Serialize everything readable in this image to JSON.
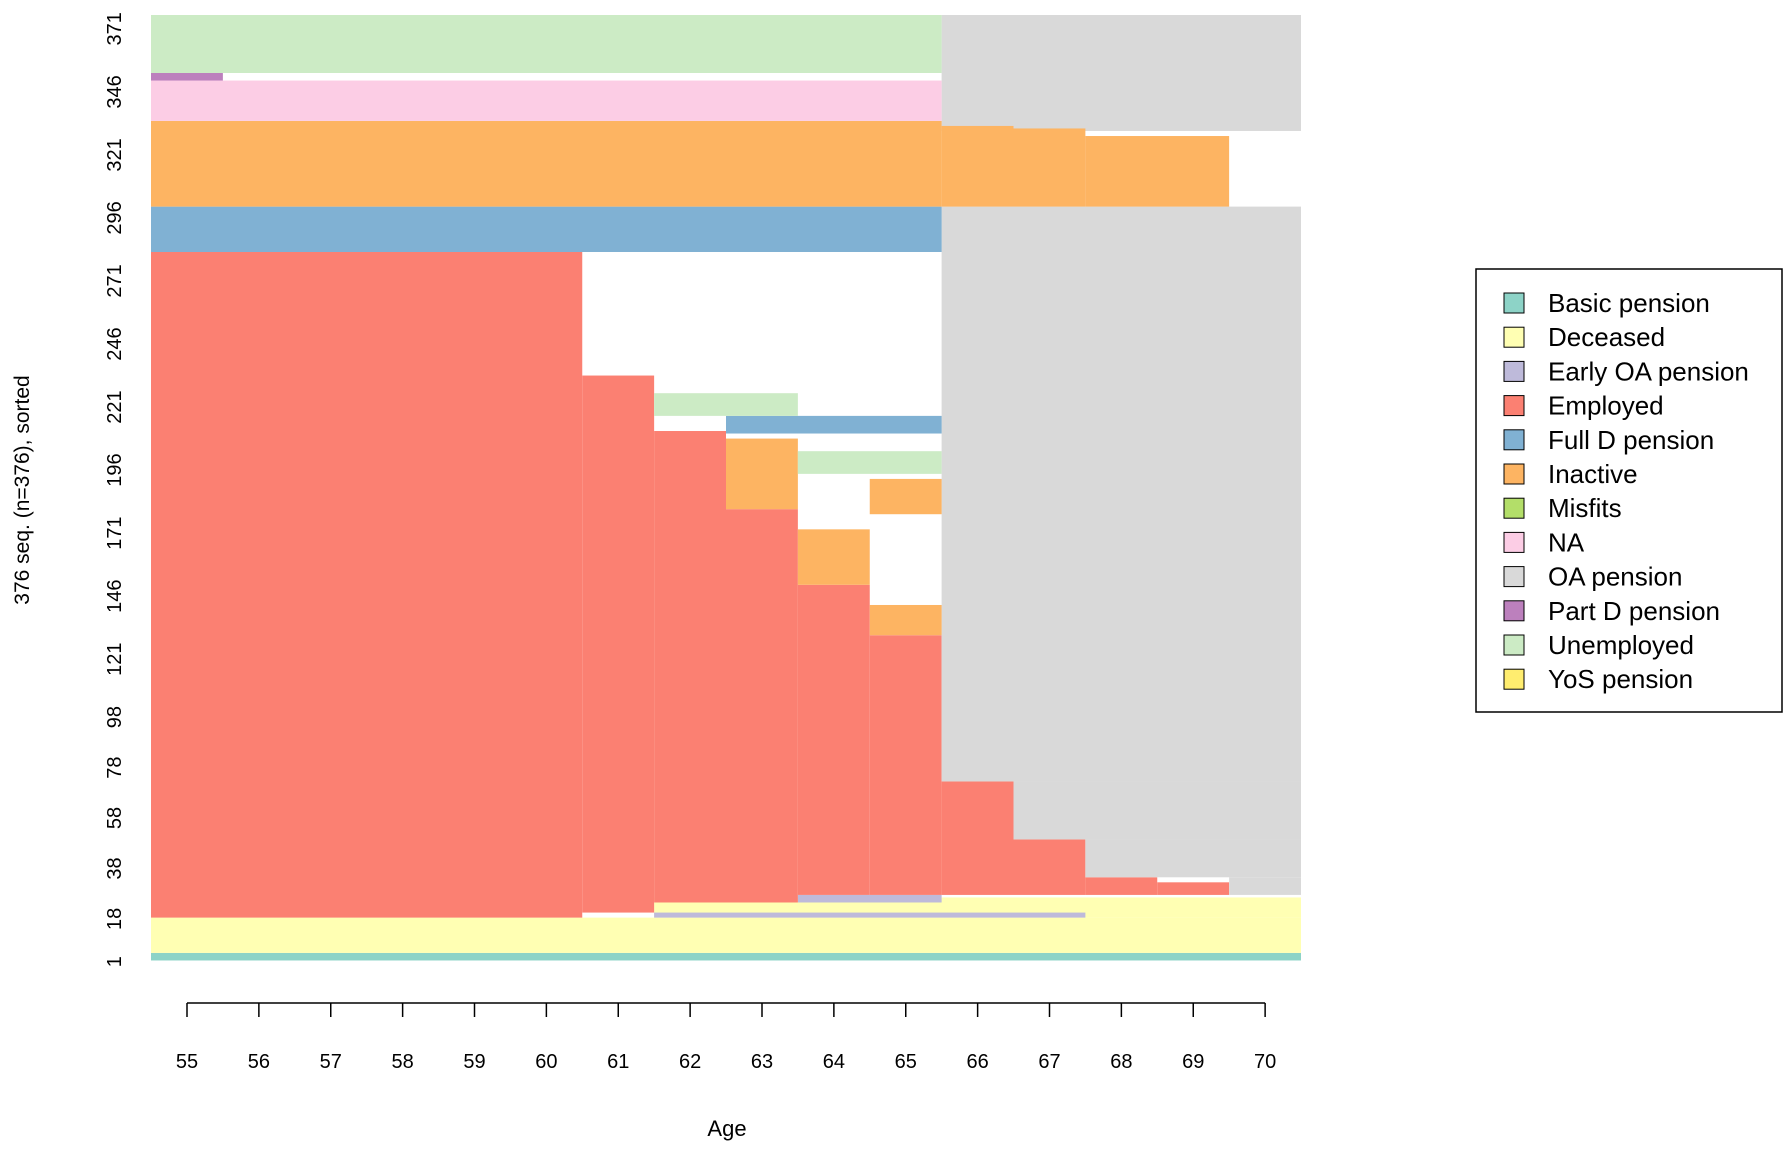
{
  "chart_data": {
    "type": "sequence_index_plot",
    "title": "",
    "xlabel": "Age",
    "ylabel": "376 seq. (n=376), sorted",
    "x_ticks": [
      "55",
      "56",
      "57",
      "58",
      "59",
      "60",
      "61",
      "62",
      "63",
      "64",
      "65",
      "66",
      "67",
      "68",
      "69",
      "70"
    ],
    "y_ticks": [
      "1",
      "18",
      "38",
      "58",
      "78",
      "98",
      "121",
      "146",
      "171",
      "196",
      "221",
      "246",
      "271",
      "296",
      "321",
      "346",
      "371"
    ],
    "x_range": [
      55,
      71
    ],
    "n_sequences": 376,
    "legend_position": "right",
    "states": [
      {
        "name": "Basic pension",
        "color": "#8dd3c7"
      },
      {
        "name": "Deceased",
        "color": "#ffffb3"
      },
      {
        "name": "Early OA pension",
        "color": "#bebada"
      },
      {
        "name": "Employed",
        "color": "#fb8072"
      },
      {
        "name": "Full D pension",
        "color": "#80b1d3"
      },
      {
        "name": "Inactive",
        "color": "#fdb462"
      },
      {
        "name": "Misfits",
        "color": "#b3de69"
      },
      {
        "name": "NA",
        "color": "#fccde5"
      },
      {
        "name": "OA pension",
        "color": "#d9d9d9"
      },
      {
        "name": "Part D pension",
        "color": "#bc80bd"
      },
      {
        "name": "Unemployed",
        "color": "#ccebc5"
      },
      {
        "name": "YoS pension",
        "color": "#ffed6f"
      }
    ],
    "blocks": [
      {
        "state": "Basic pension",
        "age_from": 55,
        "age_to": 71,
        "seq_from": 1,
        "seq_to": 4
      },
      {
        "state": "Deceased",
        "age_from": 55,
        "age_to": 71,
        "seq_from": 4,
        "seq_to": 18
      },
      {
        "state": "Deceased",
        "age_from": 62,
        "age_to": 71,
        "seq_from": 18,
        "seq_to": 26
      },
      {
        "state": "Early OA pension",
        "age_from": 62,
        "age_to": 68,
        "seq_from": 18,
        "seq_to": 20
      },
      {
        "state": "Early OA pension",
        "age_from": 64,
        "age_to": 66,
        "seq_from": 24,
        "seq_to": 27
      },
      {
        "state": "Employed",
        "age_from": 55,
        "age_to": 61,
        "seq_from": 18,
        "seq_to": 282
      },
      {
        "state": "Employed",
        "age_from": 61,
        "age_to": 62,
        "seq_from": 20,
        "seq_to": 233
      },
      {
        "state": "Employed",
        "age_from": 62,
        "age_to": 63,
        "seq_from": 24,
        "seq_to": 211
      },
      {
        "state": "Employed",
        "age_from": 63,
        "age_to": 64,
        "seq_from": 24,
        "seq_to": 180
      },
      {
        "state": "Employed",
        "age_from": 64,
        "age_to": 65,
        "seq_from": 27,
        "seq_to": 150
      },
      {
        "state": "Employed",
        "age_from": 65,
        "age_to": 66,
        "seq_from": 27,
        "seq_to": 130
      },
      {
        "state": "Employed",
        "age_from": 66,
        "age_to": 67,
        "seq_from": 27,
        "seq_to": 72
      },
      {
        "state": "Employed",
        "age_from": 67,
        "age_to": 68,
        "seq_from": 27,
        "seq_to": 49
      },
      {
        "state": "Employed",
        "age_from": 68,
        "age_to": 69,
        "seq_from": 27,
        "seq_to": 34
      },
      {
        "state": "Employed",
        "age_from": 69,
        "age_to": 70,
        "seq_from": 27,
        "seq_to": 32
      },
      {
        "state": "OA pension",
        "age_from": 66,
        "age_to": 71,
        "seq_from": 72,
        "seq_to": 300
      },
      {
        "state": "OA pension",
        "age_from": 67,
        "age_to": 71,
        "seq_from": 49,
        "seq_to": 72
      },
      {
        "state": "OA pension",
        "age_from": 68,
        "age_to": 71,
        "seq_from": 34,
        "seq_to": 49
      },
      {
        "state": "OA pension",
        "age_from": 70,
        "age_to": 71,
        "seq_from": 27,
        "seq_to": 34
      },
      {
        "state": "OA pension",
        "age_from": 66,
        "age_to": 71,
        "seq_from": 330,
        "seq_to": 376
      },
      {
        "state": "Inactive",
        "age_from": 63,
        "age_to": 64,
        "seq_from": 180,
        "seq_to": 208
      },
      {
        "state": "Inactive",
        "age_from": 64,
        "age_to": 65,
        "seq_from": 150,
        "seq_to": 172
      },
      {
        "state": "Inactive",
        "age_from": 65,
        "age_to": 66,
        "seq_from": 130,
        "seq_to": 142
      },
      {
        "state": "Inactive",
        "age_from": 65,
        "age_to": 66,
        "seq_from": 178,
        "seq_to": 192
      },
      {
        "state": "Unemployed",
        "age_from": 64,
        "age_to": 66,
        "seq_from": 194,
        "seq_to": 203
      },
      {
        "state": "Full D pension",
        "age_from": 63,
        "age_to": 66,
        "seq_from": 210,
        "seq_to": 217
      },
      {
        "state": "Unemployed",
        "age_from": 62,
        "age_to": 64,
        "seq_from": 217,
        "seq_to": 226
      },
      {
        "state": "Full D pension",
        "age_from": 55,
        "age_to": 66,
        "seq_from": 282,
        "seq_to": 300
      },
      {
        "state": "Inactive",
        "age_from": 55,
        "age_to": 66,
        "seq_from": 300,
        "seq_to": 334
      },
      {
        "state": "Inactive",
        "age_from": 66,
        "age_to": 67,
        "seq_from": 300,
        "seq_to": 332
      },
      {
        "state": "Inactive",
        "age_from": 67,
        "age_to": 68,
        "seq_from": 300,
        "seq_to": 331
      },
      {
        "state": "Inactive",
        "age_from": 68,
        "age_to": 70,
        "seq_from": 300,
        "seq_to": 328
      },
      {
        "state": "NA",
        "age_from": 55,
        "age_to": 66,
        "seq_from": 334,
        "seq_to": 350
      },
      {
        "state": "Part D pension",
        "age_from": 55,
        "age_to": 56,
        "seq_from": 350,
        "seq_to": 353
      },
      {
        "state": "Unemployed",
        "age_from": 55,
        "age_to": 66,
        "seq_from": 353,
        "seq_to": 376
      },
      {
        "state": "Employed",
        "age_from": 55,
        "age_to": 61,
        "seq_from": 18,
        "seq_to": 18
      }
    ]
  }
}
